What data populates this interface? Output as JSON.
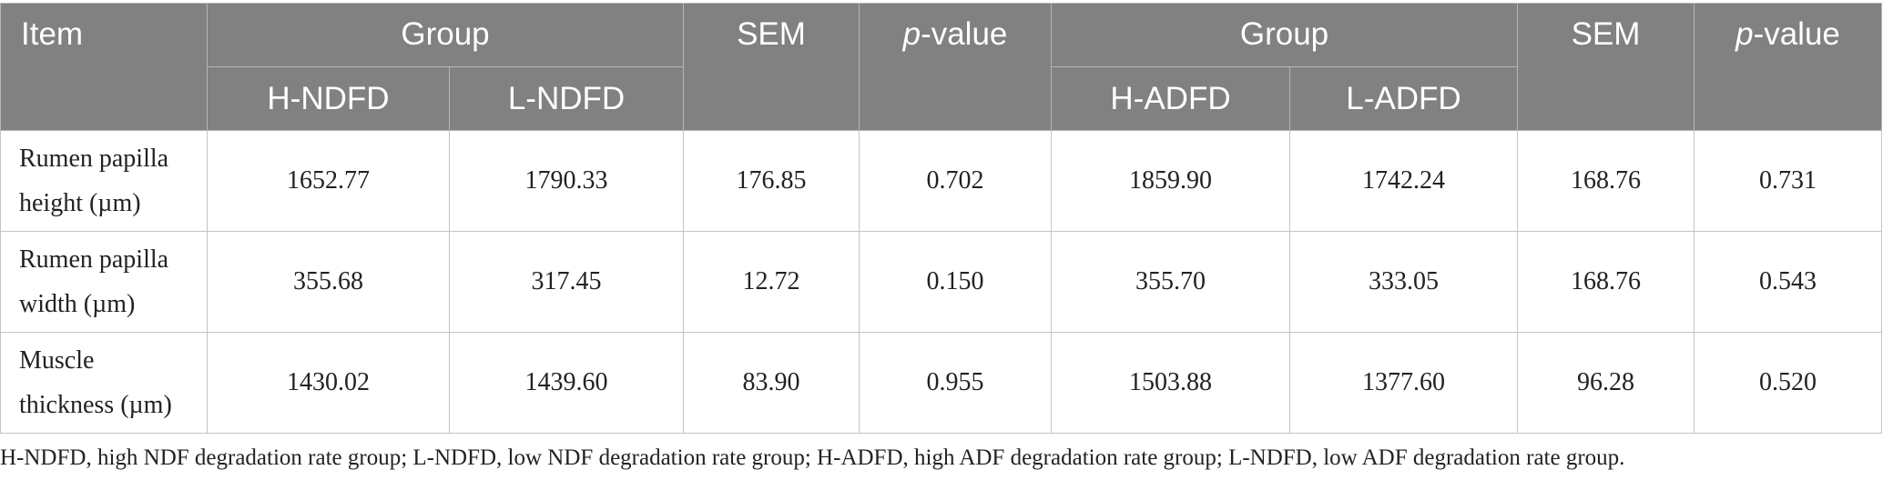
{
  "header": {
    "item": "Item",
    "group_ndf": "Group",
    "sem_ndf": "SEM",
    "pvalue_ndf_p": "p",
    "pvalue_ndf_rest": "-value",
    "group_adf": "Group",
    "sem_adf": "SEM",
    "pvalue_adf_p": "p",
    "pvalue_adf_rest": "-value",
    "h_ndfd": "H-NDFD",
    "l_ndfd": "L-NDFD",
    "h_adfd": "H-ADFD",
    "l_adfd": "L-ADFD"
  },
  "rows": [
    {
      "item_line1": "Rumen papilla",
      "item_line2": "height (µm)",
      "h_ndfd": "1652.77",
      "l_ndfd": "1790.33",
      "sem_ndf": "176.85",
      "p_ndf": "0.702",
      "h_adfd": "1859.90",
      "l_adfd": "1742.24",
      "sem_adf": "168.76",
      "p_adf": "0.731"
    },
    {
      "item_line1": "Rumen papilla",
      "item_line2": "width (µm)",
      "h_ndfd": "355.68",
      "l_ndfd": "317.45",
      "sem_ndf": "12.72",
      "p_ndf": "0.150",
      "h_adfd": "355.70",
      "l_adfd": "333.05",
      "sem_adf": "168.76",
      "p_adf": "0.543"
    },
    {
      "item_line1": "Muscle",
      "item_line2": "thickness (µm)",
      "h_ndfd": "1430.02",
      "l_ndfd": "1439.60",
      "sem_ndf": "83.90",
      "p_ndf": "0.955",
      "h_adfd": "1503.88",
      "l_adfd": "1377.60",
      "sem_adf": "96.28",
      "p_adf": "0.520"
    }
  ],
  "footnote": "H-NDFD, high NDF degradation rate group; L-NDFD, low NDF degradation rate group; H-ADFD, high ADF degradation rate group; L-NDFD, low ADF degradation rate group."
}
